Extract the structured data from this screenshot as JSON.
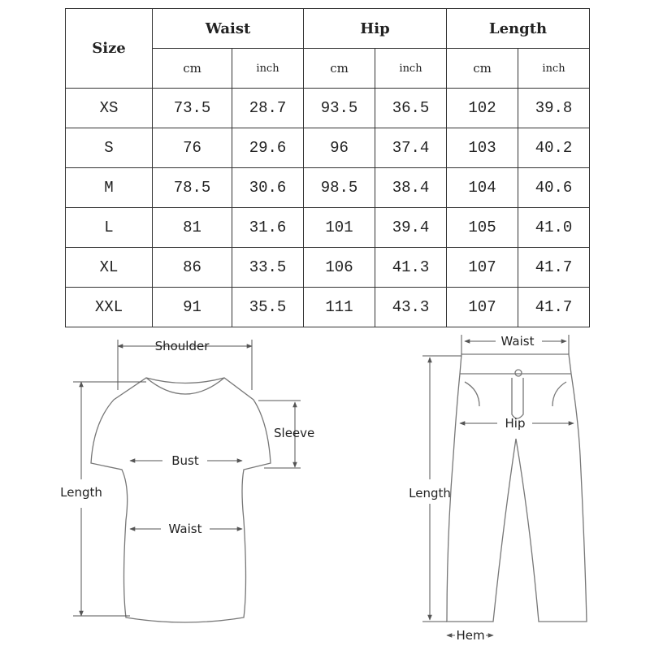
{
  "table": {
    "size_header": "Size",
    "groups": [
      "Waist",
      "Hip",
      "Length"
    ],
    "units": [
      "cm",
      "inch",
      "cm",
      "inch",
      "cm",
      "inch"
    ],
    "rows": [
      [
        "XS",
        "73.5",
        "28.7",
        "93.5",
        "36.5",
        "102",
        "39.8"
      ],
      [
        "S",
        "76",
        "29.6",
        "96",
        "37.4",
        "103",
        "40.2"
      ],
      [
        "M",
        "78.5",
        "30.6",
        "98.5",
        "38.4",
        "104",
        "40.6"
      ],
      [
        "L",
        "81",
        "31.6",
        "101",
        "39.4",
        "105",
        "41.0"
      ],
      [
        "XL",
        "86",
        "33.5",
        "106",
        "41.3",
        "107",
        "41.7"
      ],
      [
        "XXL",
        "91",
        "35.5",
        "111",
        "43.3",
        "107",
        "41.7"
      ]
    ]
  },
  "shirt": {
    "shoulder": "Shoulder",
    "sleeve": "Sleeve",
    "bust": "Bust",
    "length": "Length",
    "waist": "Waist"
  },
  "pants": {
    "waist": "Waist",
    "hip": "Hip",
    "length": "Length",
    "hem": "Hem"
  }
}
